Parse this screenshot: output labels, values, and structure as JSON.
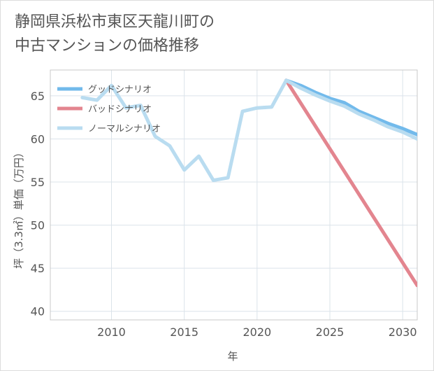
{
  "title_lines": [
    "静岡県浜松市東区天龍川町の",
    "中古マンションの価格推移"
  ],
  "chart_data": {
    "type": "line",
    "title": "静岡県浜松市東区天龍川町の中古マンションの価格推移",
    "xlabel": "年",
    "ylabel": "坪（3.3㎡）単価（万円）",
    "xlim": [
      2005.8,
      2031
    ],
    "ylim": [
      39,
      68
    ],
    "x_ticks": [
      2010,
      2015,
      2020,
      2025,
      2030
    ],
    "x_tick_labels": [
      "2010",
      "2015",
      "2020",
      "2025",
      "2030"
    ],
    "y_ticks": [
      40,
      45,
      50,
      55,
      60,
      65
    ],
    "y_tick_labels": [
      "40",
      "45",
      "50",
      "55",
      "60",
      "65"
    ],
    "grid": true,
    "legend_position": "top-left",
    "series": [
      {
        "name": "グッドシナリオ",
        "color": "#72baeb",
        "x": [
          2022,
          2023,
          2024,
          2025,
          2026,
          2027,
          2028,
          2029,
          2030,
          2031
        ],
        "values": [
          66.8,
          66.2,
          65.4,
          64.7,
          64.2,
          63.2,
          62.5,
          61.8,
          61.2,
          60.5
        ]
      },
      {
        "name": "バッドシナリオ",
        "color": "#e3858f",
        "x": [
          2022,
          2031
        ],
        "values": [
          66.8,
          43.0
        ]
      },
      {
        "name": "ノーマルシナリオ",
        "color": "#b9dcf0",
        "x": [
          2008,
          2009,
          2010,
          2011,
          2012,
          2013,
          2014,
          2015,
          2016,
          2017,
          2018,
          2019,
          2020,
          2021,
          2022,
          2023,
          2024,
          2025,
          2026,
          2027,
          2028,
          2029,
          2030,
          2031
        ],
        "values": [
          64.8,
          64.5,
          66.2,
          63.6,
          63.9,
          60.3,
          59.2,
          56.4,
          58.0,
          55.2,
          55.5,
          63.2,
          63.6,
          63.7,
          66.8,
          65.9,
          65.1,
          64.4,
          63.8,
          62.9,
          62.2,
          61.4,
          60.8,
          60.0
        ]
      }
    ]
  }
}
